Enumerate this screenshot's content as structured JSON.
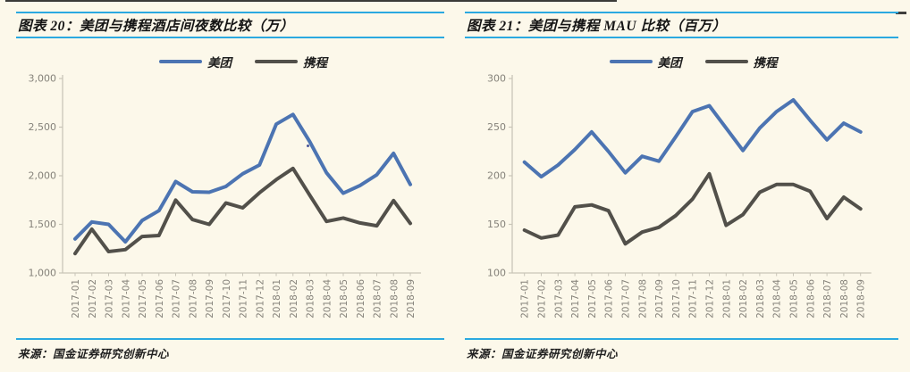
{
  "page": {
    "background": "#FCF8EA",
    "accent_color": "#2BA9E0"
  },
  "chart_data": [
    {
      "type": "line",
      "title": "图表 20：美团与携程酒店间夜数比较（万）",
      "source": "来源：国金证券研究创新中心",
      "x": [
        "2017-01",
        "2017-02",
        "2017-03",
        "2017-04",
        "2017-05",
        "2017-06",
        "2017-07",
        "2017-08",
        "2017-09",
        "2017-10",
        "2017-11",
        "2017-12",
        "2018-01",
        "2018-02",
        "2018-03",
        "2018-04",
        "2018-05",
        "2018-06",
        "2018-07",
        "2018-08",
        "2018-09"
      ],
      "series": [
        {
          "name": "美团",
          "color": "#4C74B2",
          "values": [
            1350,
            1525,
            1500,
            1320,
            1540,
            1640,
            1940,
            1835,
            1830,
            1890,
            2020,
            2110,
            2530,
            2630,
            2350,
            2030,
            1820,
            1900,
            2010,
            2230,
            1910
          ]
        },
        {
          "name": "携程",
          "color": "#52504A",
          "values": [
            1200,
            1450,
            1220,
            1240,
            1375,
            1385,
            1750,
            1550,
            1500,
            1720,
            1670,
            1825,
            1960,
            2075,
            1800,
            1530,
            1565,
            1515,
            1485,
            1745,
            1510
          ]
        }
      ],
      "ylim": [
        1000,
        3000
      ],
      "ytick_values": [
        1000,
        1500,
        2000,
        2500,
        3000
      ],
      "ytick_labels": [
        "1,000",
        "1,500",
        "2,000",
        "2,500",
        "3,000"
      ],
      "legend_position": "top",
      "grid": false
    },
    {
      "type": "line",
      "title": "图表 21：美团与携程 MAU 比较（百万）",
      "source": "来源：国金证券研究创新中心",
      "x": [
        "2017-01",
        "2017-02",
        "2017-03",
        "2017-04",
        "2017-05",
        "2017-06",
        "2017-07",
        "2017-08",
        "2017-09",
        "2017-10",
        "2017-11",
        "2017-12",
        "2018-01",
        "2018-02",
        "2018-03",
        "2018-04",
        "2018-05",
        "2018-06",
        "2018-07",
        "2018-08",
        "2018-09"
      ],
      "series": [
        {
          "name": "美团",
          "color": "#4C74B2",
          "values": [
            214,
            199,
            211,
            227,
            245,
            225,
            203,
            220,
            215,
            240,
            266,
            272,
            249,
            226,
            249,
            266,
            278,
            257,
            237,
            254,
            245
          ]
        },
        {
          "name": "携程",
          "color": "#52504A",
          "values": [
            144,
            136,
            139,
            168,
            170,
            164,
            130,
            142,
            147,
            159,
            176,
            202,
            149,
            160,
            183,
            191,
            191,
            184,
            156,
            178,
            166
          ]
        }
      ],
      "ylim": [
        100,
        300
      ],
      "ytick_values": [
        100,
        150,
        200,
        250,
        300
      ],
      "ytick_labels": [
        "100",
        "150",
        "200",
        "250",
        "300"
      ],
      "legend_position": "top",
      "grid": false
    }
  ]
}
